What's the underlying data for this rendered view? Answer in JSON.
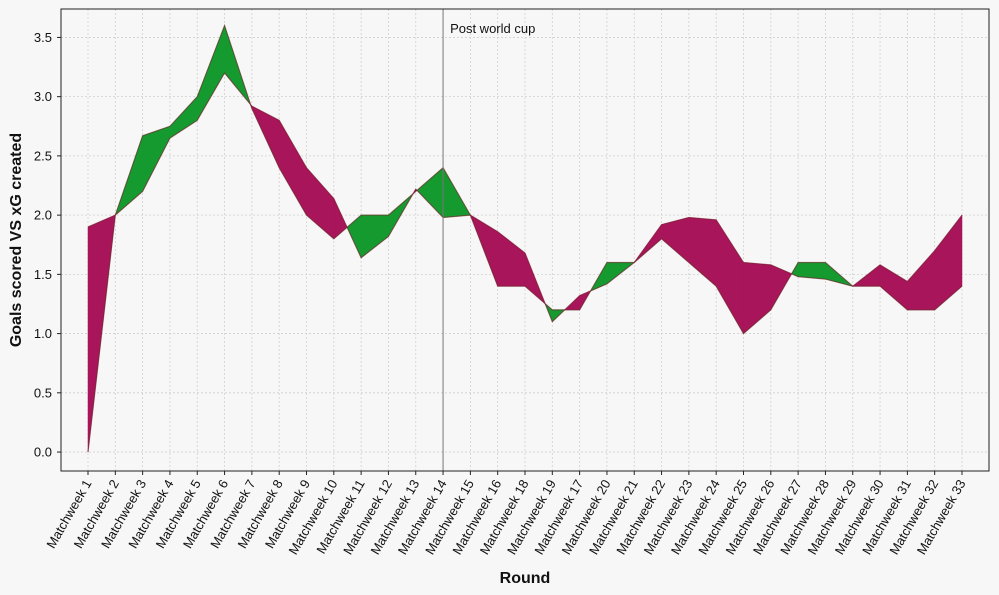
{
  "chart_data": {
    "type": "area",
    "title": "",
    "xlabel": "Round",
    "ylabel": "Goals scored VS xG created",
    "ylim": [
      -0.16,
      3.74
    ],
    "yticks": [
      0.0,
      0.5,
      1.0,
      1.5,
      2.0,
      2.5,
      3.0,
      3.5
    ],
    "grid": true,
    "categories": [
      "Matchweek 1",
      "Matchweek 2",
      "Matchweek 3",
      "Matchweek 4",
      "Matchweek 5",
      "Matchweek 6",
      "Matchweek 7",
      "Matchweek 8",
      "Matchweek 9",
      "Matchweek 10",
      "Matchweek 11",
      "Matchweek 12",
      "Matchweek 13",
      "Matchweek 14",
      "Matchweek 15",
      "Matchweek 16",
      "Matchweek 18",
      "Matchweek 19",
      "Matchweek 17",
      "Matchweek 20",
      "Matchweek 21",
      "Matchweek 22",
      "Matchweek 23",
      "Matchweek 24",
      "Matchweek 25",
      "Matchweek 26",
      "Matchweek 27",
      "Matchweek 28",
      "Matchweek 29",
      "Matchweek 30",
      "Matchweek 31",
      "Matchweek 32",
      "Matchweek 33"
    ],
    "series": [
      {
        "values": [
          0.0,
          2.0,
          2.67,
          2.75,
          3.0,
          3.6,
          2.9,
          2.4,
          2.0,
          1.8,
          2.0,
          2.0,
          2.2,
          2.4,
          2.0,
          1.4,
          1.4,
          1.2,
          1.2,
          1.6,
          1.6,
          1.8,
          1.6,
          1.4,
          1.0,
          1.2,
          1.6,
          1.6,
          1.4,
          1.4,
          1.2,
          1.2,
          1.4
        ]
      },
      {
        "values": [
          1.9,
          2.0,
          2.2,
          2.65,
          2.8,
          3.2,
          2.92,
          2.8,
          2.4,
          2.14,
          1.64,
          1.82,
          2.22,
          1.98,
          2.0,
          1.86,
          1.68,
          1.1,
          1.32,
          1.42,
          1.6,
          1.92,
          1.98,
          1.96,
          1.6,
          1.58,
          1.48,
          1.46,
          1.4,
          1.58,
          1.44,
          1.7,
          2.0
        ]
      }
    ],
    "colors": {
      "above": "#159a2f",
      "below": "#a8155a",
      "above_line": "#2a9a30",
      "below_line": "#b01550"
    },
    "annotation": {
      "text": "Post world cup",
      "category_index": 13
    }
  }
}
